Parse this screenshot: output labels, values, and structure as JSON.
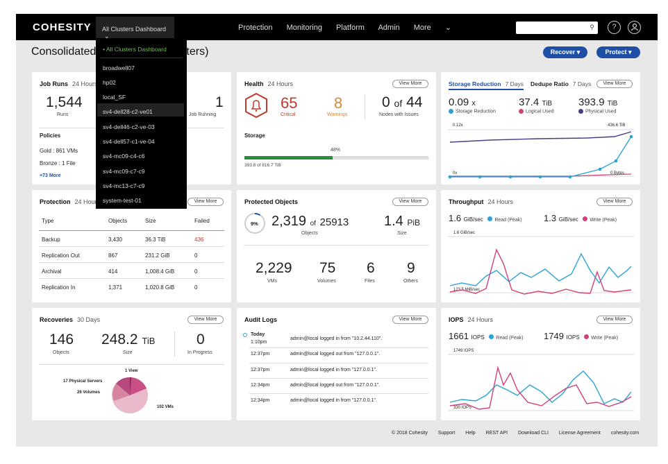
{
  "brand": "COHESITY",
  "cluster_select": "All Clusters Dashboard",
  "nav": [
    "Protection",
    "Monitoring",
    "Platform",
    "Admin",
    "More"
  ],
  "page_title": "Consolidated",
  "page_title_suffix": "sters)",
  "recover_label": "Recover",
  "protect_label": "Protect",
  "view_more": "View More",
  "dropdown": {
    "items": [
      "• All Clusters Dashboard",
      "broadwell07",
      "hp02",
      "local_SF",
      "sv4-dell28-c2-ve01",
      "sv4-dell46-c2-ve-03",
      "sv4-dell57-c1-ve-04",
      "sv4-mc09-c4-c6",
      "sv4-mc09-c7-c9",
      "sv4-mc13-c7-c9",
      "system-test-01"
    ]
  },
  "job_runs": {
    "title": "Job Runs",
    "sub": "24 Hours",
    "runs": "1,544",
    "runs_label": "Runs",
    "running": "1",
    "running_label": "Job Running",
    "policies_title": "Policies",
    "gold": "Gold : 861 VMs",
    "bronze": "Bronze : 1 File",
    "more": "+73 More"
  },
  "health": {
    "title": "Health",
    "sub": "24 Hours",
    "critical": "65",
    "critical_label": "Critical",
    "warnings": "8",
    "warnings_label": "Warnings",
    "nodes_prefix": "0",
    "nodes_of": "of",
    "nodes_total": "44",
    "nodes_label": "Nodes with Issues",
    "storage_title": "Storage",
    "storage_pct": "48%",
    "storage_pct_value": 48,
    "storage_detail": "393.8 of 816.7 TiB"
  },
  "storage_reduction": {
    "tab1": "Storage Reduction",
    "tab1_sub": "7 Days",
    "tab2": "Dedupe Ratio",
    "tab2_sub": "7 Days",
    "v1": "0.09",
    "v1_unit": "x",
    "v1_label": "Storage Reduction",
    "v2": "37.4",
    "v2_unit": "TiB",
    "v2_label": "Logical Used",
    "v3": "393.9",
    "v3_unit": "TiB",
    "v3_label": "Physical Used",
    "top_left": "0.12x",
    "top_right": "436.6 TiB",
    "bottom_left": "0x",
    "bottom_right": "0 Bytes"
  },
  "protection": {
    "title": "Protection",
    "sub": "24 Hours",
    "headers": [
      "Type",
      "Objects",
      "Size",
      "Failed"
    ],
    "rows": [
      [
        "Backup",
        "3,430",
        "36.3 TiB",
        "436"
      ],
      [
        "Replication Out",
        "867",
        "231.2 GiB",
        "0"
      ],
      [
        "Archival",
        "414",
        "1,008.4 GiB",
        "0"
      ],
      [
        "Replication In",
        "1,371",
        "1,020.8 GiB",
        "0"
      ]
    ]
  },
  "protected_objects": {
    "title": "Protected Objects",
    "pct": "9%",
    "pct_value": 9,
    "count": "2,319",
    "of": "of",
    "total": "25913",
    "count_label": "Objects",
    "size": "1.4",
    "size_unit": "PiB",
    "size_label": "Size",
    "vms": "2,229",
    "vms_label": "VMs",
    "volumes": "75",
    "volumes_label": "Volumes",
    "files": "6",
    "files_label": "Files",
    "others": "9",
    "others_label": "Others"
  },
  "throughput": {
    "title": "Throughput",
    "sub": "24 Hours",
    "read": "1.6",
    "read_unit": "GiB/sec",
    "read_label": "Read (Peak)",
    "write": "1.3",
    "write_unit": "GiB/sec",
    "write_label": "Write (Peak)",
    "top": "1.6 GiB/sec",
    "bottom": "123.5 MiB/sec"
  },
  "recoveries": {
    "title": "Recoveries",
    "sub": "30 Days",
    "objects": "146",
    "objects_label": "Objects",
    "size": "248.2",
    "size_unit": "TiB",
    "size_label": "Size",
    "in_progress": "0",
    "in_progress_label": "In Progress",
    "pie_labels": [
      "1 View",
      "17 Physical Servers",
      "26 Volumes",
      "102 VMs"
    ]
  },
  "audit_logs": {
    "title": "Audit Logs",
    "today": "Today",
    "entries": [
      [
        "1:10pm",
        "admin@local logged in from \"10.2.44.110\"."
      ],
      [
        "12:37pm",
        "admin@local logged out from \"127.0.0.1\"."
      ],
      [
        "12:37pm",
        "admin@local logged in from \"127.0.0.1\"."
      ],
      [
        "12:34pm",
        "admin@local logged out from \"127.0.0.1\"."
      ],
      [
        "12:34pm",
        "admin@local logged in from \"127.0.0.1\"."
      ]
    ]
  },
  "iops": {
    "title": "IOPS",
    "sub": "24 Hours",
    "read": "1661",
    "read_unit": "IOPS",
    "read_label": "Read (Peak)",
    "write": "1749",
    "write_unit": "IOPS",
    "write_label": "Write (Peak)",
    "top": "1749 IOPS",
    "bottom": "330 IOPS"
  },
  "footer": [
    "© 2018 Cohesity",
    "Support",
    "Help",
    "REST API",
    "Download CLI",
    "License Agreement",
    "cohesity.com"
  ],
  "colors": {
    "accent_blue": "#1e4fa5",
    "critical_red": "#c0392b",
    "warning_orange": "#d4893a",
    "cyan": "#29a3d6",
    "pink": "#d1407a",
    "purple": "#4a3a8a",
    "green": "#2e8b3e"
  }
}
